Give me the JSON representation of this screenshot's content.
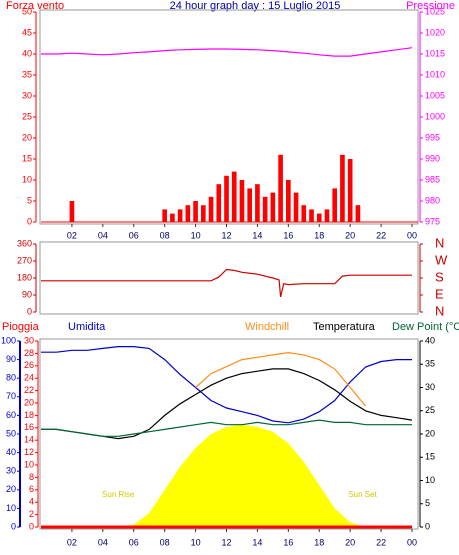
{
  "chart_data": [
    {
      "type": "combo",
      "title": "24 hour graph day : 15 Luglio 2015",
      "ylabel": "Forza vento",
      "y2label": "Pressione",
      "xlim": [
        0,
        24
      ],
      "xticks": [
        {
          "value": 2,
          "label": "02"
        },
        {
          "value": 4,
          "label": "04"
        },
        {
          "value": 6,
          "label": "06"
        },
        {
          "value": 8,
          "label": "08"
        },
        10,
        12,
        14,
        16,
        18,
        20,
        22,
        {
          "value": 24,
          "label": "00"
        }
      ],
      "ylim": [
        0,
        50
      ],
      "yticks": [
        0,
        5,
        10,
        15,
        20,
        25,
        30,
        35,
        40,
        45,
        50
      ],
      "y2lim": [
        975,
        1025
      ],
      "y2ticks": [
        975,
        980,
        985,
        990,
        995,
        1000,
        1005,
        1010,
        1015,
        1020,
        1025
      ],
      "series": [
        {
          "type": "bar",
          "color": "#ff0000",
          "x": [
            0,
            0.5,
            1,
            1.5,
            2,
            2.5,
            3,
            3.5,
            4,
            4.5,
            5,
            5.5,
            6,
            6.5,
            7,
            7.5,
            8,
            8.5,
            9,
            9.5,
            10,
            10.5,
            11,
            11.5,
            12,
            12.5,
            13,
            13.5,
            14,
            14.5,
            15,
            15.5,
            16,
            16.5,
            17,
            17.5,
            18,
            18.5,
            19,
            19.5,
            20,
            20.5,
            21,
            21.5,
            22,
            22.5,
            23,
            23.5
          ],
          "values": [
            0,
            0,
            0,
            0,
            5,
            0,
            0,
            0,
            0,
            0,
            0,
            0,
            0,
            0,
            0,
            0,
            3,
            2,
            3,
            4,
            5,
            4,
            6,
            9,
            11,
            12,
            10,
            8,
            9,
            6,
            7,
            16,
            10,
            7,
            4,
            3,
            2,
            3,
            8,
            16,
            15,
            4,
            0,
            0,
            0,
            0,
            0,
            0
          ]
        },
        {
          "type": "line",
          "axis": "y2",
          "color": "#ff00ff",
          "x": [
            0,
            1,
            2,
            3,
            4,
            5,
            6,
            7,
            8,
            9,
            10,
            11,
            12,
            13,
            14,
            15,
            16,
            17,
            18,
            19,
            20,
            21,
            22,
            23,
            24
          ],
          "values": [
            1015,
            1015,
            1015.2,
            1015,
            1014.8,
            1015,
            1015.3,
            1015.5,
            1015.8,
            1016,
            1016.1,
            1016.2,
            1016.2,
            1016.1,
            1016,
            1015.8,
            1015.5,
            1015.2,
            1014.8,
            1014.5,
            1014.5,
            1015,
            1015.5,
            1016,
            1016.5
          ]
        }
      ]
    },
    {
      "type": "line",
      "xlim": [
        0,
        24
      ],
      "ylim": [
        0,
        360
      ],
      "yticks": [
        0,
        90,
        180,
        270,
        360
      ],
      "y2lim": [
        0,
        360
      ],
      "y2ticks": [
        {
          "value": 360,
          "label": "N"
        },
        {
          "value": 270,
          "label": "W"
        },
        {
          "value": 180,
          "label": "S"
        },
        {
          "value": 90,
          "label": "E"
        },
        {
          "value": 0,
          "label": "N"
        }
      ],
      "series": [
        {
          "type": "line",
          "color": "#cc0000",
          "x": [
            0,
            11,
            11.5,
            12,
            12.5,
            13,
            14,
            15,
            15.4,
            15.5,
            15.7,
            16,
            17,
            19,
            19.5,
            20,
            24
          ],
          "values": [
            165,
            165,
            185,
            225,
            220,
            210,
            200,
            180,
            170,
            80,
            150,
            145,
            150,
            150,
            190,
            195,
            195
          ]
        }
      ]
    },
    {
      "type": "combo",
      "xlim": [
        0,
        24
      ],
      "xticks": [
        {
          "value": 2,
          "label": "02"
        },
        {
          "value": 4,
          "label": "04"
        },
        {
          "value": 6,
          "label": "06"
        },
        {
          "value": 8,
          "label": "08"
        },
        10,
        12,
        14,
        16,
        18,
        20,
        22,
        {
          "value": 24,
          "label": "00"
        }
      ],
      "ylim": [
        0,
        30
      ],
      "yticks": [
        0,
        2,
        4,
        6,
        8,
        10,
        12,
        14,
        16,
        18,
        20,
        22,
        24,
        26,
        28,
        30
      ],
      "y2lim": [
        0,
        40
      ],
      "y2ticks": [
        0,
        5,
        10,
        15,
        20,
        25,
        30,
        35,
        40
      ],
      "y3lim": [
        0,
        100
      ],
      "y3ticks": [
        0,
        10,
        20,
        30,
        40,
        50,
        60,
        70,
        80,
        90,
        100
      ],
      "annotations": [
        "Sun Rise",
        "Sun Set"
      ],
      "series": [
        {
          "type": "area",
          "axis": "y2",
          "color": "#ffff00",
          "x": [
            0,
            1,
            2,
            3,
            4,
            5,
            6,
            7,
            8,
            9,
            10,
            11,
            12,
            13,
            14,
            15,
            16,
            17,
            18,
            19,
            20,
            21,
            22,
            23,
            24
          ],
          "values": [
            0,
            0,
            0,
            0,
            0,
            0,
            0.5,
            3,
            8,
            13,
            17,
            20,
            21.5,
            22,
            21.5,
            20.5,
            18,
            14,
            9,
            4,
            1,
            0,
            0,
            0,
            0
          ]
        },
        {
          "type": "line",
          "name": "Pioggia",
          "color": "#ff0000",
          "x": [
            0,
            1,
            2,
            3,
            4,
            5,
            6,
            7,
            8,
            9,
            10,
            11,
            12,
            13,
            14,
            15,
            16,
            17,
            18,
            19,
            20,
            21,
            22,
            23,
            24
          ],
          "values": [
            0,
            0,
            0,
            0,
            0,
            0,
            0,
            0,
            0,
            0,
            0,
            0,
            0,
            0,
            0,
            0,
            0,
            0,
            0,
            0,
            0,
            0,
            0,
            0,
            0
          ]
        },
        {
          "type": "line",
          "name": "Umidita",
          "axis": "y3",
          "color": "#0000cc",
          "x": [
            0,
            1,
            2,
            3,
            4,
            5,
            6,
            7,
            8,
            9,
            10,
            11,
            12,
            13,
            14,
            15,
            16,
            17,
            18,
            19,
            20,
            21,
            22,
            23,
            24
          ],
          "values": [
            94,
            94,
            95,
            95,
            96,
            97,
            97,
            96,
            90,
            82,
            75,
            68,
            64,
            62,
            60,
            57,
            56,
            58,
            62,
            68,
            78,
            86,
            89,
            90,
            90
          ]
        },
        {
          "type": "line",
          "name": "Windchill",
          "axis": "y2",
          "color": "#ff8c1a",
          "x": [
            0,
            1,
            2,
            3,
            4,
            5,
            6,
            7,
            8,
            9,
            10,
            11,
            12,
            13,
            14,
            15,
            16,
            17,
            18,
            19,
            20,
            21,
            22,
            23,
            24
          ],
          "values": [
            null,
            null,
            null,
            null,
            null,
            null,
            null,
            null,
            null,
            null,
            30,
            33,
            34.5,
            36,
            36.5,
            37,
            37.5,
            37,
            36,
            34,
            30,
            26,
            null,
            null,
            null
          ]
        },
        {
          "type": "line",
          "name": "Temperatura",
          "axis": "y2",
          "color": "#000000",
          "x": [
            0,
            1,
            2,
            3,
            4,
            5,
            6,
            7,
            8,
            9,
            10,
            11,
            12,
            13,
            14,
            15,
            16,
            17,
            18,
            19,
            20,
            21,
            22,
            23,
            24
          ],
          "values": [
            21,
            21,
            20.5,
            20,
            19.5,
            19,
            19.5,
            21,
            24,
            26.5,
            28.5,
            30.5,
            32,
            33,
            33.5,
            34,
            34,
            33,
            31.5,
            29.5,
            27,
            25,
            24,
            23.5,
            23
          ]
        },
        {
          "type": "line",
          "name": "Dew Point (°C",
          "axis": "y2",
          "color": "#006633",
          "x": [
            0,
            1,
            2,
            3,
            4,
            5,
            6,
            7,
            8,
            9,
            10,
            11,
            12,
            13,
            14,
            15,
            16,
            17,
            18,
            19,
            20,
            21,
            22,
            23,
            24
          ],
          "values": [
            21,
            21,
            20.5,
            20,
            19.5,
            19.5,
            20,
            20.5,
            21,
            21.5,
            22,
            22.5,
            22,
            22,
            22.5,
            22,
            22,
            22.5,
            23,
            22.5,
            22.5,
            22,
            22,
            22,
            22
          ]
        }
      ]
    }
  ]
}
